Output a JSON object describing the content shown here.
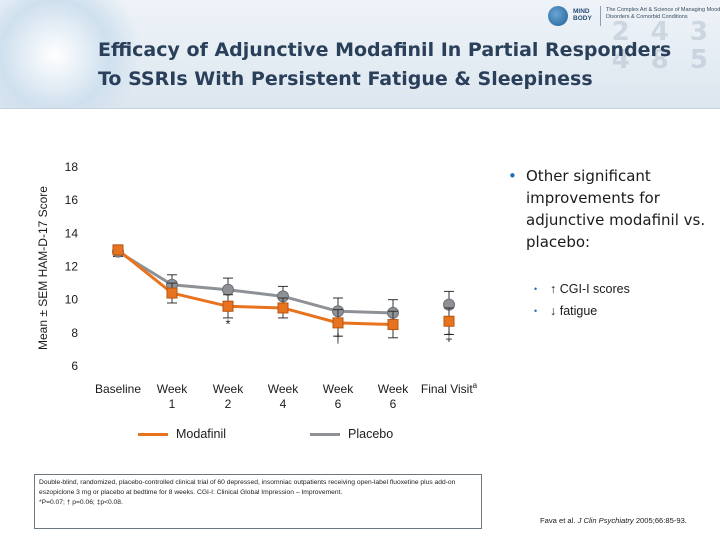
{
  "slide": {
    "title": "Efficacy of Adjunctive Modafinil In Partial Responders\nTo SSRIs With Persistent Fatigue & Sleepiness"
  },
  "logo": {
    "brand": "MIND BODY",
    "tagline": "The Complex Art & Science of Managing Mood Disorders & Comorbid Conditions"
  },
  "header_decor": "2 4 3\n4 8 5",
  "chart_data": {
    "type": "line",
    "ylabel": "Mean ± SEM HAM-D-17 Score",
    "ylim": [
      6,
      18
    ],
    "yticks": [
      6,
      8,
      10,
      12,
      14,
      16,
      18
    ],
    "categories": [
      "Baseline",
      "Week\n1",
      "Week\n2",
      "Week\n4",
      "Week\n6",
      "Week\n6"
    ],
    "final_visit_label": "Final Visit",
    "final_visit_superscript": "a",
    "series": [
      {
        "name": "Modafinil",
        "color": "#e8731f",
        "marker": "square",
        "values": [
          13.0,
          10.4,
          9.6,
          9.5,
          8.6,
          8.5
        ],
        "final_visit": 8.7,
        "sem": [
          0.3,
          0.6,
          0.7,
          0.6,
          0.8,
          0.8
        ],
        "final_visit_sem": 0.8
      },
      {
        "name": "Placebo",
        "color": "#8e9296",
        "marker": "circle",
        "values": [
          12.9,
          10.9,
          10.6,
          10.2,
          9.3,
          9.2
        ],
        "final_visit": 9.7,
        "sem": [
          0.3,
          0.6,
          0.7,
          0.6,
          0.8,
          0.8
        ],
        "final_visit_sem": 0.8
      }
    ],
    "annotations": [
      {
        "text": "*",
        "at": "Week\n2"
      },
      {
        "text": "†",
        "at": "Week\n6 (1)"
      },
      {
        "text": "‡",
        "at": "Final Visit"
      }
    ]
  },
  "legend": {
    "modafinil": "Modafinil",
    "placebo": "Placebo"
  },
  "bullets": {
    "main": "Other significant improvements for adjunctive modafinil vs. placebo:",
    "sub": [
      "↑ CGI-I scores",
      "↓ fatigue"
    ]
  },
  "footnote": {
    "line1": "Double-blind, randomized, placebo-controlled clinical trial of 60 depressed, insomniac outpatients receiving open-label fluoxetine plus add-on eszopiclone 3 mg or placebo at bedtime for 8 weeks. CGI-I: Clinical Global Impression – Improvement.",
    "line2": "*P=0.07; † p=0.06; ‡p<0.08."
  },
  "citation": {
    "authors": "Fava et al. ",
    "journal": "J Clin Psychiatry",
    "details": " 2005;66:85-93."
  }
}
